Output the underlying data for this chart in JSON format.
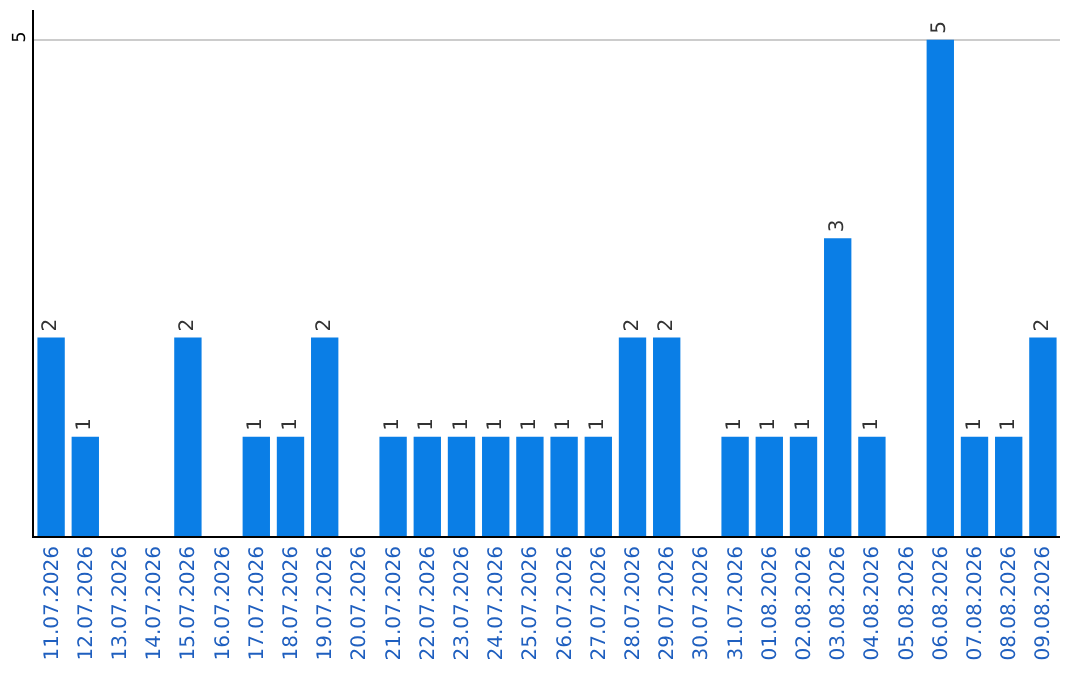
{
  "chart_data": {
    "type": "bar",
    "categories": [
      "11.07.2026",
      "12.07.2026",
      "13.07.2026",
      "14.07.2026",
      "15.07.2026",
      "16.07.2026",
      "17.07.2026",
      "18.07.2026",
      "19.07.2026",
      "20.07.2026",
      "21.07.2026",
      "22.07.2026",
      "23.07.2026",
      "24.07.2026",
      "25.07.2026",
      "26.07.2026",
      "27.07.2026",
      "28.07.2026",
      "29.07.2026",
      "30.07.2026",
      "31.07.2026",
      "01.08.2026",
      "02.08.2026",
      "03.08.2026",
      "04.08.2026",
      "05.08.2026",
      "06.08.2026",
      "07.08.2026",
      "08.08.2026",
      "09.08.2026"
    ],
    "values": [
      2,
      1,
      0,
      0,
      2,
      0,
      1,
      1,
      2,
      0,
      1,
      1,
      1,
      1,
      1,
      1,
      1,
      2,
      2,
      0,
      1,
      1,
      1,
      3,
      1,
      0,
      5,
      1,
      1,
      2
    ],
    "value_labels": [
      "2",
      "1",
      null,
      null,
      "2",
      null,
      "1",
      "1",
      "2",
      null,
      "1",
      "1",
      "1",
      "1",
      "1",
      "1",
      "1",
      "2",
      "2",
      null,
      "1",
      "1",
      "1",
      "3",
      "1",
      null,
      "5",
      "1",
      "1",
      "2"
    ],
    "color": "#0a7ee6",
    "ylim": [
      0,
      5.3
    ],
    "yticks": [
      5
    ],
    "grid": "y",
    "legend": false
  }
}
